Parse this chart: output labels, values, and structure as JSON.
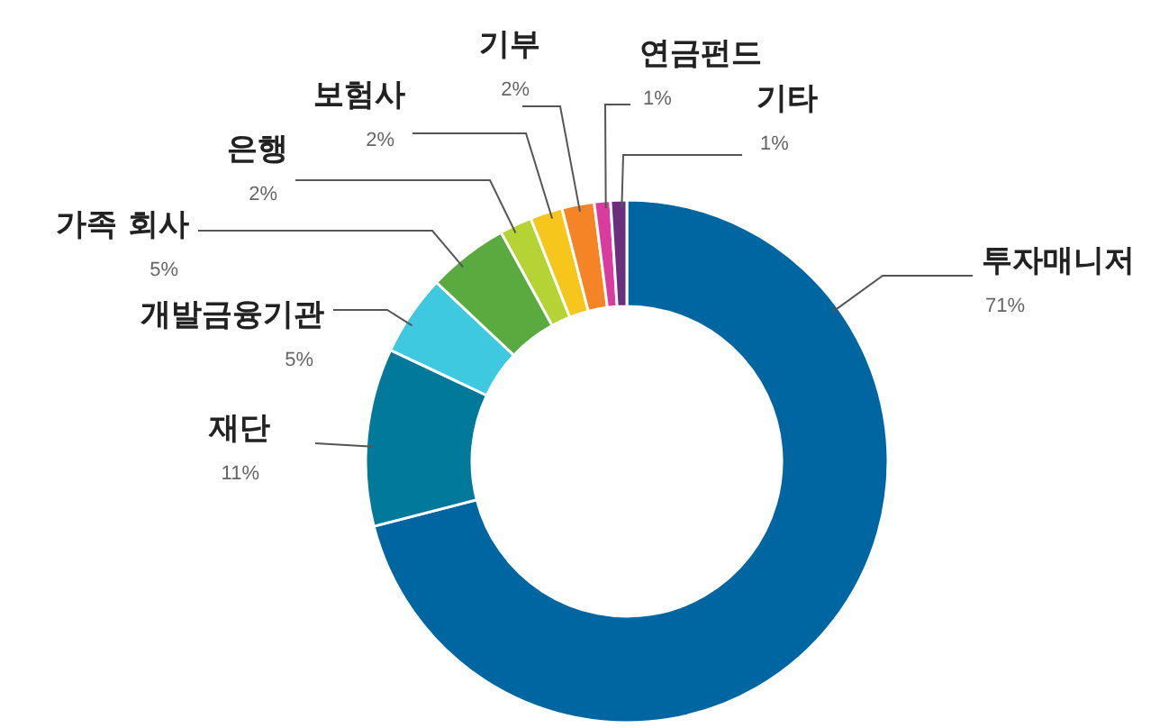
{
  "chart_data": {
    "type": "donut",
    "categories": [
      "투자매니저",
      "재단",
      "개발금융기관",
      "가족 회사",
      "은행",
      "보험사",
      "기부",
      "연금펀드",
      "기타"
    ],
    "values": [
      71,
      11,
      5,
      5,
      2,
      2,
      2,
      1,
      1
    ],
    "colors": [
      "#0066a1",
      "#00799a",
      "#3ec9e0",
      "#5aab3f",
      "#b5d334",
      "#f6c61d",
      "#f58426",
      "#d93b9e",
      "#6b2d7c"
    ],
    "value_labels": [
      "71%",
      "11%",
      "5%",
      "5%",
      "2%",
      "2%",
      "2%",
      "1%",
      "1%"
    ]
  }
}
